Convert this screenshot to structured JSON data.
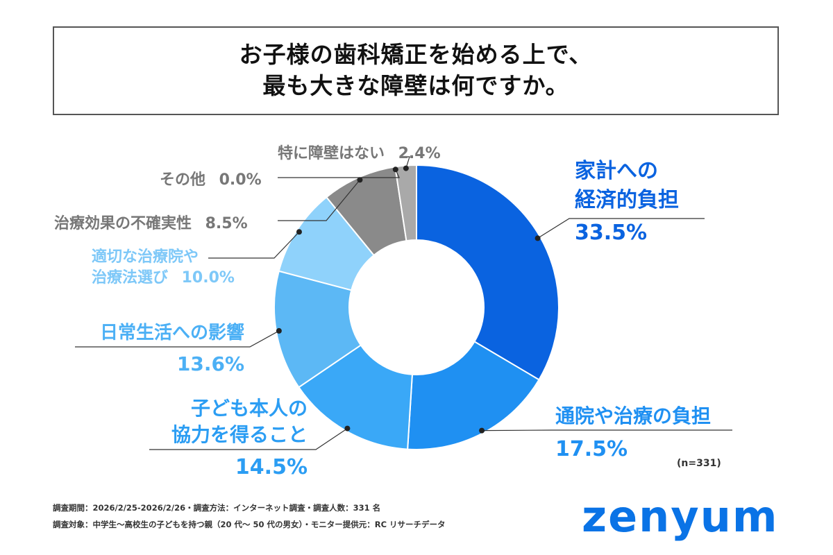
{
  "title": {
    "line1": "お子様の歯科矯正を始める上で、",
    "line2": "最も大きな障壁は何ですか。"
  },
  "chart_data": {
    "type": "pie",
    "subtype": "donut",
    "slices": [
      {
        "label_lines": [
          "家計への",
          "経済的負担"
        ],
        "value": 33.5,
        "pct": "33.5%",
        "color": "#0a63e0"
      },
      {
        "label_lines": [
          "通院や治療の負担"
        ],
        "value": 17.5,
        "pct": "17.5%",
        "color": "#1f90f2"
      },
      {
        "label_lines": [
          "子ども本人の",
          "協力を得ること"
        ],
        "value": 14.5,
        "pct": "14.5%",
        "color": "#3aa8f7"
      },
      {
        "label_lines": [
          "日常生活への影響"
        ],
        "value": 13.6,
        "pct": "13.6%",
        "color": "#5cb8f5"
      },
      {
        "label_lines": [
          "適切な治療院や",
          "治療法選び"
        ],
        "value": 10.0,
        "pct": "10.0%",
        "color": "#8fd2fb"
      },
      {
        "label_lines": [
          "治療効果の不確実性"
        ],
        "value": 8.5,
        "pct": "8.5%",
        "color": "#8a8a8a"
      },
      {
        "label_lines": [
          "その他"
        ],
        "value": 0.0,
        "pct": "0.0%",
        "color": "#b0b0b0"
      },
      {
        "label_lines": [
          "特に障壁はない"
        ],
        "value": 2.4,
        "pct": "2.4%",
        "color": "#a9a9a9"
      }
    ],
    "sample_note": "(n=331)"
  },
  "footer": {
    "line1": "調査期間：2026/2/25-2026/2/26・調査方法：インターネット調査・調査人数：331 名",
    "line2": "調査対象：中学生〜高校生の子どもを持つ親（20 代〜 50 代の男女）・モニター提供元：RC リサーチデータ"
  },
  "brand": {
    "logo_text": "zenyum",
    "color": "#0a73e6"
  }
}
